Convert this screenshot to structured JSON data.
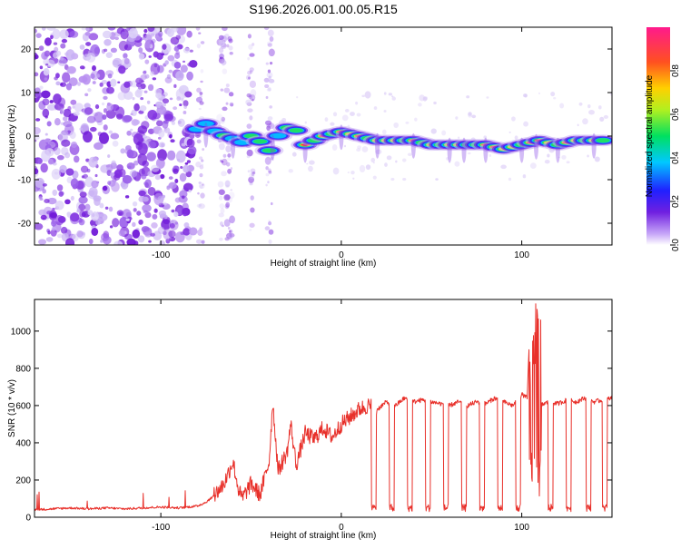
{
  "title": "S196.2026.001.00.05.R15",
  "colors": {
    "snr_line": "#e8302a",
    "spec_low": "#8a3de8",
    "spec_mid": "#00c8ff",
    "spec_high": "#ff2040"
  },
  "chart_data": [
    {
      "type": "heatmap",
      "name": "spectrogram",
      "xlabel": "Height of straight line (km)",
      "ylabel": "Frequency (Hz)",
      "xlim": [
        -170,
        150
      ],
      "ylim": [
        -25,
        25
      ],
      "xticks": [
        -100,
        0,
        100
      ],
      "xtick_labels": [
        "-100",
        "0",
        "100"
      ],
      "yticks": [
        -20,
        -10,
        0,
        10,
        20
      ],
      "ytick_labels": [
        "-20",
        "-10",
        "0",
        "10",
        "20"
      ],
      "ridge": {
        "x": [
          -80,
          -70,
          -60,
          -50,
          -40,
          -30,
          -20,
          -10,
          0,
          10,
          20,
          30,
          40,
          50,
          60,
          70,
          80,
          90,
          100,
          110,
          120,
          130,
          140,
          148
        ],
        "y": [
          0,
          3,
          -1,
          2,
          -2,
          1,
          -2,
          0,
          1,
          0,
          -1,
          -1,
          -1,
          -2,
          -2,
          -2,
          -2,
          -3,
          -2,
          -1,
          -2,
          -1,
          -1,
          -1
        ]
      },
      "colorbar": {
        "label": "Normalized spectral amplitude",
        "range": [
          0,
          1
        ],
        "ticks": [
          0.0,
          0.2,
          0.4,
          0.6,
          0.8
        ],
        "tick_labels": [
          "0.0",
          "0.2",
          "0.4",
          "0.6",
          "0.8"
        ]
      }
    },
    {
      "type": "line",
      "name": "snr",
      "xlabel": "Height of straight line (km)",
      "ylabel": "SNR (10 * v/v)",
      "xlim": [
        -170,
        150
      ],
      "ylim": [
        0,
        1170
      ],
      "xticks": [
        -100,
        0,
        100
      ],
      "xtick_labels": [
        "-100",
        "0",
        "100"
      ],
      "yticks": [
        0,
        200,
        400,
        600,
        800,
        1000
      ],
      "ytick_labels": [
        "0",
        "200",
        "400",
        "600",
        "800",
        "1000"
      ],
      "series": [
        {
          "name": "SNR",
          "x": [
            -170,
            -160,
            -150,
            -140,
            -130,
            -120,
            -110,
            -100,
            -90,
            -80,
            -75,
            -70,
            -65,
            -60,
            -57,
            -55,
            -50,
            -45,
            -40,
            -38,
            -35,
            -30,
            -28,
            -25,
            -20,
            -15,
            -10,
            -5,
            0,
            5,
            10,
            15,
            20,
            25,
            30,
            35,
            40,
            45,
            50,
            55,
            60,
            65,
            70,
            75,
            80,
            85,
            90,
            95,
            100,
            103,
            105,
            107,
            110,
            115,
            120,
            125,
            130,
            135,
            140,
            145,
            150
          ],
          "y": [
            40,
            45,
            50,
            45,
            50,
            45,
            50,
            55,
            50,
            60,
            80,
            120,
            180,
            300,
            150,
            100,
            180,
            120,
            300,
            620,
            250,
            350,
            500,
            280,
            450,
            420,
            480,
            430,
            500,
            540,
            580,
            600,
            580,
            620,
            600,
            640,
            620,
            630,
            620,
            610,
            600,
            620,
            600,
            620,
            610,
            640,
            620,
            600,
            660,
            640,
            1160,
            700,
            600,
            620,
            610,
            630,
            620,
            640,
            620,
            630,
            640
          ]
        }
      ],
      "dips": [
        18,
        28,
        38,
        48,
        58,
        68,
        78,
        88,
        98,
        116,
        126,
        137,
        146
      ]
    }
  ]
}
